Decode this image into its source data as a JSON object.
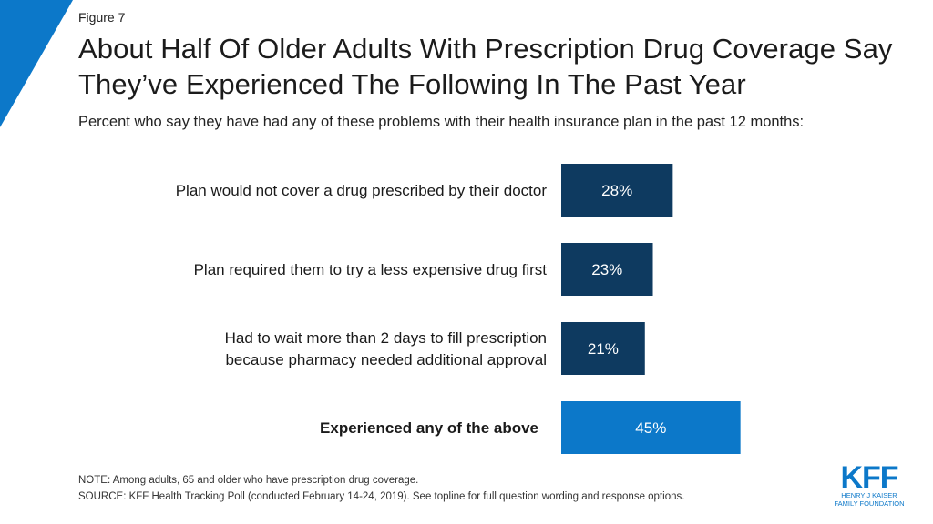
{
  "header": {
    "figure_label": "Figure 7",
    "title": "About Half Of Older Adults With Prescription Drug Coverage Say They’ve Experienced The Following In The Past Year",
    "subtitle": "Percent who say they have had any of these problems with their health insurance plan in the past 12 months:"
  },
  "chart_data": {
    "type": "bar",
    "orientation": "horizontal",
    "categories": [
      "Plan would not cover a drug prescribed by their doctor",
      "Plan required them to try a less expensive drug first",
      "Had to wait more than 2 days to fill prescription because pharmacy needed additional approval",
      "Experienced any of the above"
    ],
    "category_lines": [
      [
        "Plan would not cover a drug prescribed by their doctor"
      ],
      [
        "Plan required them to try a less expensive drug first"
      ],
      [
        "Had to wait more than 2 days to fill prescription",
        "because pharmacy needed additional approval"
      ],
      [
        "Experienced any of the above"
      ]
    ],
    "values": [
      28,
      23,
      21,
      45
    ],
    "data_labels": [
      "28%",
      "23%",
      "21%",
      "45%"
    ],
    "emphasized": [
      false,
      false,
      false,
      true
    ],
    "colors": {
      "bar": "#0e3a60",
      "emphasis": "#0c78c9",
      "label": "#ffffff"
    },
    "xlim": [
      0,
      100
    ],
    "grid": false
  },
  "footer": {
    "note": "NOTE: Among adults, 65 and older who have prescription drug coverage.",
    "source": "SOURCE: KFF Health Tracking Poll (conducted February 14-24, 2019). See topline for full question wording and response options."
  },
  "logo": {
    "mark": "KFF",
    "line1": "HENRY J KAISER",
    "line2": "FAMILY FOUNDATION",
    "color": "#0c78c9"
  },
  "theme": {
    "accent": "#0c78c9"
  }
}
